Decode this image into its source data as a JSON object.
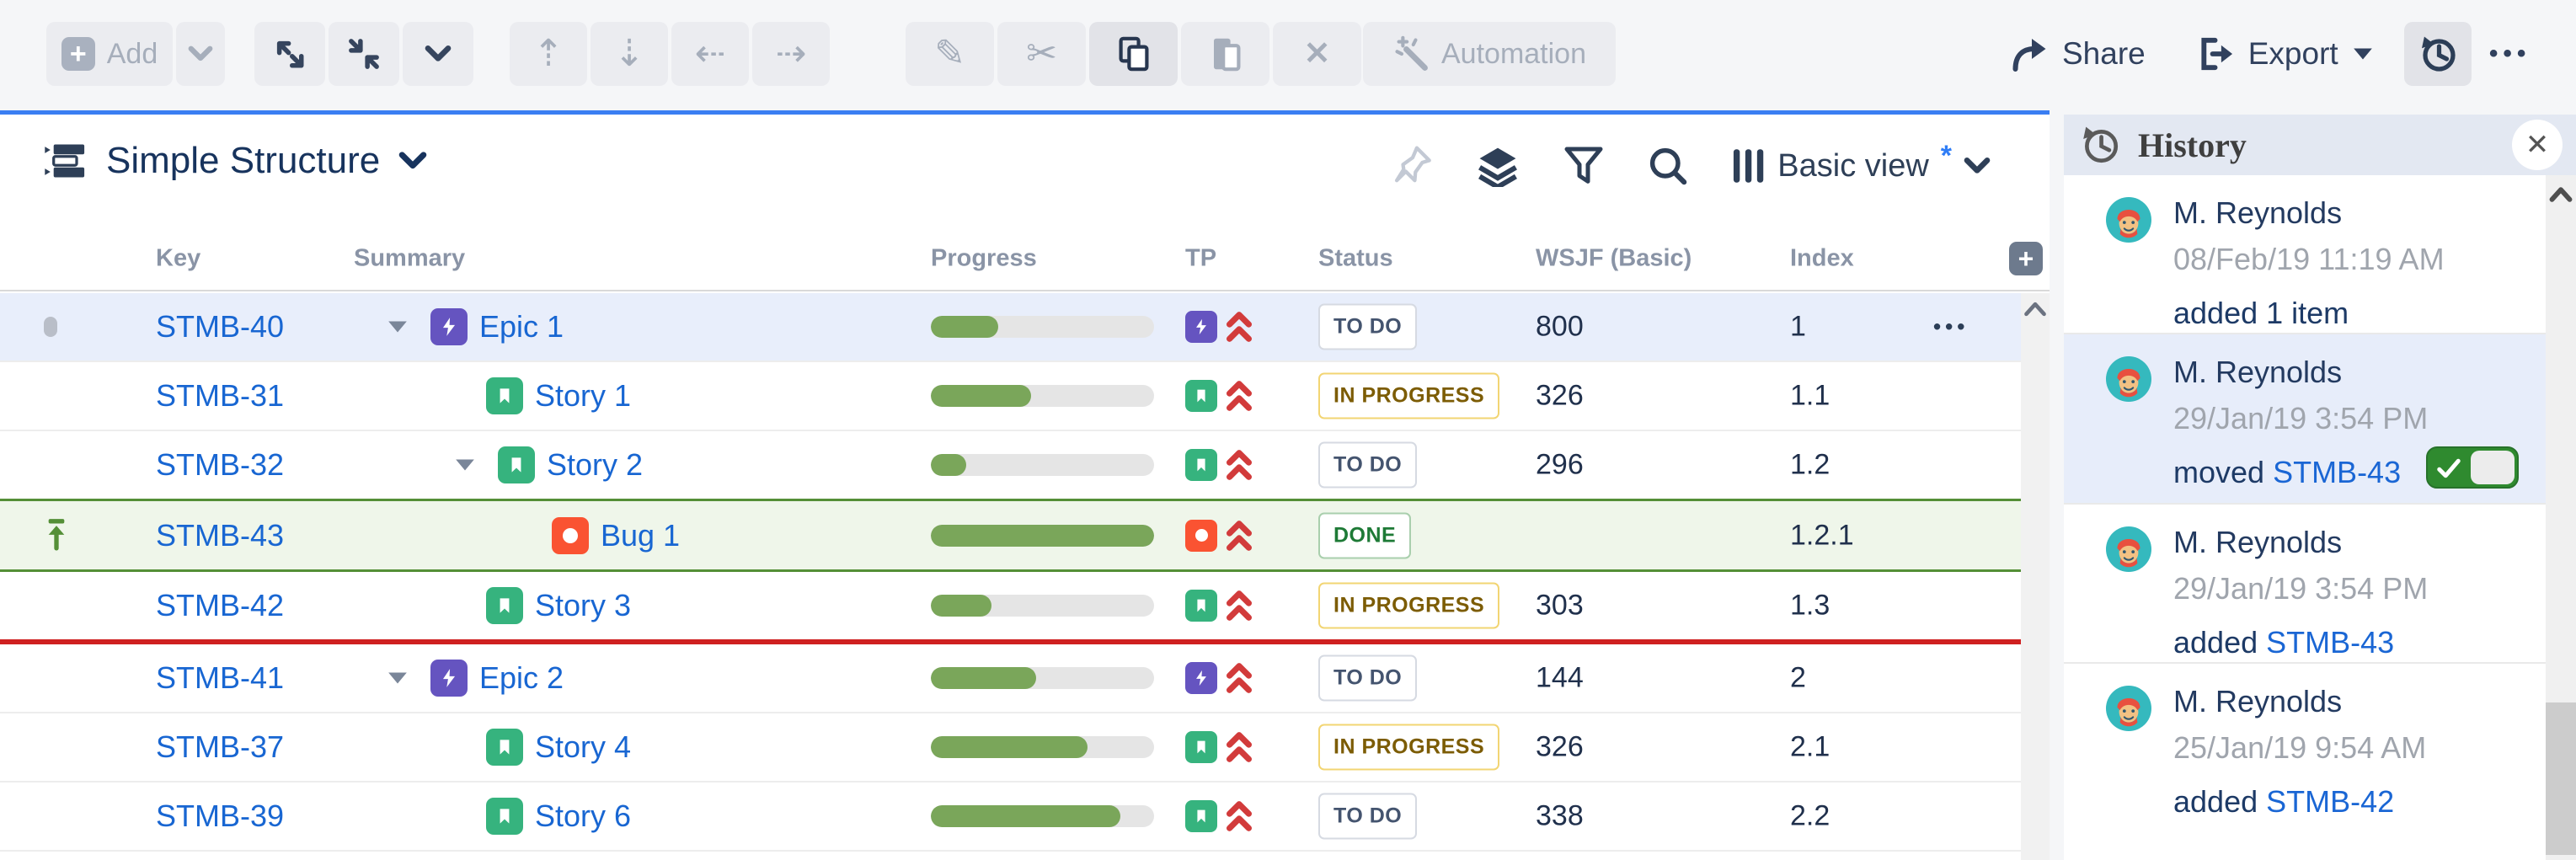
{
  "toolbar": {
    "add_label": "Add",
    "automation_label": "Automation",
    "share_label": "Share",
    "export_label": "Export",
    "more_label": "•••"
  },
  "title_bar": {
    "structure_name": "Simple Structure",
    "view_name": "Basic view",
    "view_modified_indicator": "*"
  },
  "table": {
    "columns": [
      "Key",
      "Summary",
      "Progress",
      "TP",
      "Status",
      "WSJF (Basic)",
      "Index"
    ],
    "add_column_label": "+",
    "rows": [
      {
        "key": "STMB-40",
        "summary": "Epic 1",
        "type": "epic",
        "level": 1,
        "expanded": true,
        "progress": 30,
        "priority": "highest",
        "status": "TO DO",
        "wsjf": "800",
        "index": "1",
        "more": "•••",
        "selected": true
      },
      {
        "key": "STMB-31",
        "summary": "Story 1",
        "type": "story",
        "level": 2,
        "expanded": null,
        "progress": 45,
        "priority": "highest",
        "status": "IN PROGRESS",
        "wsjf": "326",
        "index": "1.1"
      },
      {
        "key": "STMB-32",
        "summary": "Story 2",
        "type": "story",
        "level": 2,
        "expanded": true,
        "progress": 16,
        "priority": "highest",
        "status": "TO DO",
        "wsjf": "296",
        "index": "1.2"
      },
      {
        "key": "STMB-43",
        "summary": "Bug 1",
        "type": "bug",
        "level": 3,
        "expanded": null,
        "progress": 100,
        "priority": "highest",
        "status": "DONE",
        "wsjf": "",
        "index": "1.2.1",
        "highlighted": "moved-row"
      },
      {
        "key": "STMB-42",
        "summary": "Story 3",
        "type": "story",
        "level": 2,
        "expanded": null,
        "progress": 27,
        "priority": "highest",
        "status": "IN PROGRESS",
        "wsjf": "303",
        "index": "1.3"
      },
      {
        "key": "STMB-41",
        "summary": "Epic 2",
        "type": "epic",
        "level": 1,
        "expanded": true,
        "progress": 47,
        "priority": "highest",
        "status": "TO DO",
        "wsjf": "144",
        "index": "2"
      },
      {
        "key": "STMB-37",
        "summary": "Story 4",
        "type": "story",
        "level": 2,
        "expanded": null,
        "progress": 70,
        "priority": "highest",
        "status": "IN PROGRESS",
        "wsjf": "326",
        "index": "2.1"
      },
      {
        "key": "STMB-39",
        "summary": "Story 6",
        "type": "story",
        "level": 2,
        "expanded": null,
        "progress": 85,
        "priority": "highest",
        "status": "TO DO",
        "wsjf": "338",
        "index": "2.2"
      }
    ]
  },
  "history_panel": {
    "title": "History",
    "entries": [
      {
        "user": "M. Reynolds",
        "timestamp": "08/Feb/19 11:19 AM",
        "action": "added 1 item"
      },
      {
        "user": "M. Reynolds",
        "timestamp": "29/Jan/19 3:54 PM",
        "action_prefix": "moved ",
        "action_link": "STMB-43",
        "selected": true,
        "toggle_on": true
      },
      {
        "user": "M. Reynolds",
        "timestamp": "29/Jan/19 3:54 PM",
        "action_prefix": "added ",
        "action_link": "STMB-43"
      },
      {
        "user": "M. Reynolds",
        "timestamp": "25/Jan/19 9:54 AM",
        "action_prefix": "added ",
        "action_link": "STMB-42"
      }
    ]
  },
  "colors": {
    "accent_blue": "#3a7ef2",
    "link_blue": "#1866d2",
    "epic_purple": "#6554c0",
    "story_green": "#36b37e",
    "bug_red": "#fa5332",
    "priority_red": "#d23b3b",
    "progress_green": "#7aa65a",
    "selected_row": "#e8eefb",
    "moved_row_bg": "#eff6ea",
    "moved_row_border": "#548f37",
    "drop_line_red": "#cf2020",
    "toggle_green": "#2f8a2f"
  }
}
